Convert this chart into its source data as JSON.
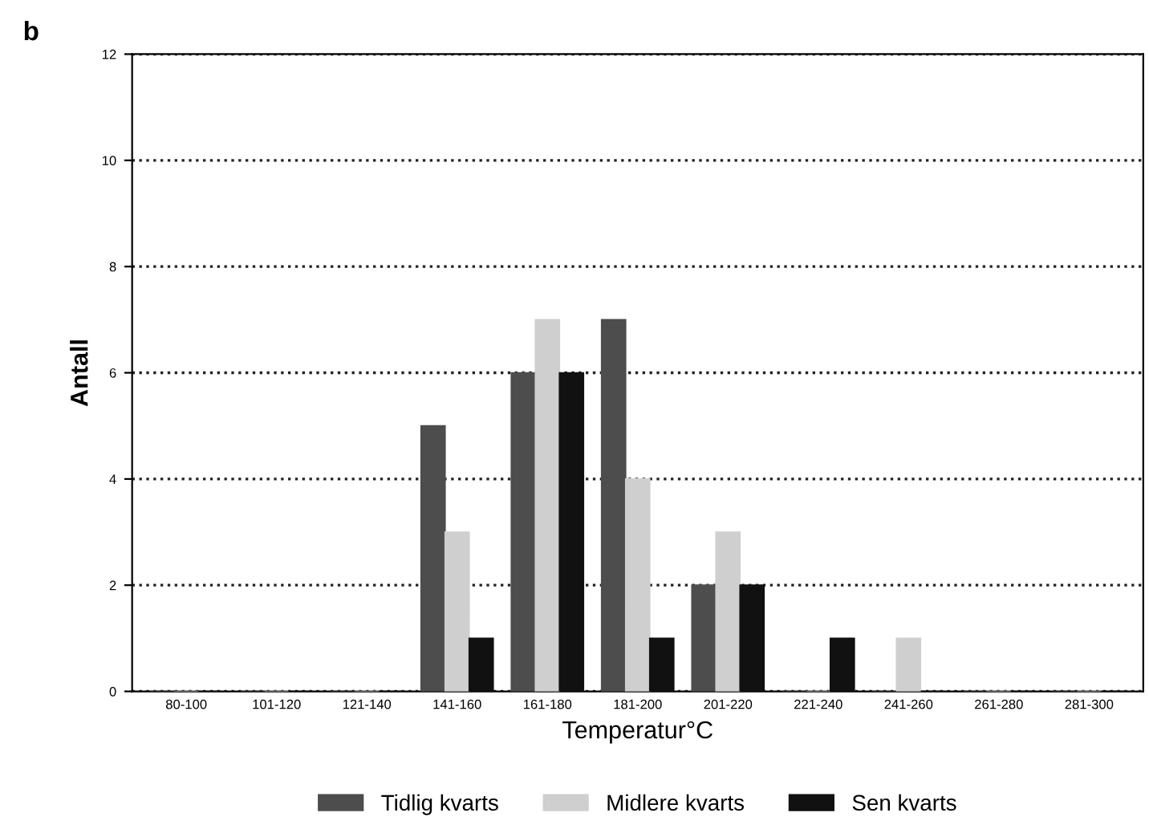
{
  "chart_data": {
    "type": "bar",
    "xlabel": "Temperatur°C",
    "ylabel": "Antall",
    "categories": [
      "80-100",
      "101-120",
      "121-140",
      "141-160",
      "161-180",
      "181-200",
      "201-220",
      "221-240",
      "241-260",
      "261-280",
      "281-300"
    ],
    "series": [
      {
        "name": "Tidlig kvarts",
        "color": "#4d4d4d",
        "values": [
          0,
          0,
          0,
          5,
          6,
          7,
          2,
          0,
          0,
          0,
          0
        ]
      },
      {
        "name": "Midlere kvarts",
        "color": "#cfcfcf",
        "values": [
          0,
          0,
          0,
          3,
          7,
          4,
          3,
          0,
          1,
          0,
          0
        ]
      },
      {
        "name": "Sen kvarts",
        "color": "#111111",
        "values": [
          0,
          0,
          0,
          1,
          6,
          1,
          2,
          1,
          0,
          0,
          0
        ]
      }
    ],
    "ylim": [
      0,
      12
    ],
    "yticks": [
      0,
      2,
      4,
      6,
      8,
      10,
      12
    ],
    "grid": "y",
    "legend": "bottom",
    "annotations": [
      "b"
    ]
  }
}
